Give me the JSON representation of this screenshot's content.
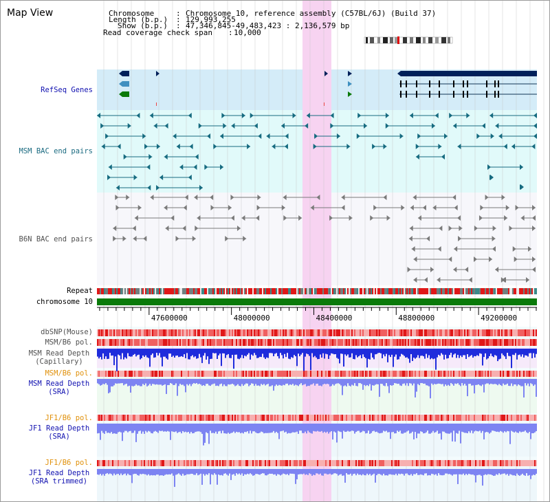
{
  "page": {
    "title": "Map View"
  },
  "header": {
    "chromosome_key": "Chromosome",
    "chromosome_value": "Chromosome 10, reference assembly (C57BL/6J) (Build 37)",
    "length_key": "Length (b.p.)",
    "length_value": "129,993,255",
    "show_key": "Show (b.p.)",
    "show_value": "47,346,845-49,483,423 : 2,136,579 bp",
    "span_key": "Read coverage check span",
    "span_value": "10,000"
  },
  "colors": {
    "highlight": "#f7d3f1",
    "refseq_bg": "#d4ecf8",
    "msm_bac_bg": "#e1fafa",
    "b6n_bac_bg": "#f7f7fb",
    "navy": "#00205a",
    "teal": "#166b80",
    "grey_feature": "#7a7a7a",
    "chromosome_green": "#0a7a0a",
    "depth_blue": "#1f2cdc",
    "depth_lavender": "#7d84f2",
    "pol_red": "#e83030"
  },
  "tracks": [
    {
      "name": "refseq-genes",
      "label": "RefSeq Genes",
      "color": "#1010b0"
    },
    {
      "name": "msm-bac-end-pairs",
      "label": "MSM BAC end pairs",
      "color": "#1a6a80"
    },
    {
      "name": "b6n-bac-end-pairs",
      "label": "B6N BAC end pairs",
      "color": "#505050"
    },
    {
      "name": "repeat",
      "label": "Repeat",
      "color": "#000000"
    },
    {
      "name": "chromosome",
      "label": "chromosome 10",
      "color": "#000000"
    },
    {
      "name": "dbsnp",
      "label": "dbSNP(Mouse)",
      "color": "#505050"
    },
    {
      "name": "msm-b6-pol-1",
      "label": "MSM/B6 pol.",
      "color": "#505050"
    },
    {
      "name": "msm-depth-capillary",
      "label": "MSM Read Depth\n(Capillary)",
      "color": "#505050"
    },
    {
      "name": "msm-b6-pol-2",
      "label": "MSM/B6 pol.",
      "color": "#e0900a"
    },
    {
      "name": "msm-depth-sra",
      "label": "MSM Read Depth\n(SRA)",
      "color": "#1010b0"
    },
    {
      "name": "jf1-b6-pol-1",
      "label": "JF1/B6 pol.",
      "color": "#e0900a"
    },
    {
      "name": "jf1-depth-sra",
      "label": "JF1 Read Depth\n(SRA)",
      "color": "#1010b0"
    },
    {
      "name": "jf1-b6-pol-2",
      "label": "JF1/B6 pol.",
      "color": "#e0900a"
    },
    {
      "name": "jf1-depth-sra-trimmed",
      "label": "JF1 Read Depth\n(SRA trimmed)",
      "color": "#1010b0"
    }
  ],
  "ruler": {
    "range_bp": [
      47346845,
      49483423
    ],
    "ticks": [
      {
        "position": 47600000,
        "label": "47600000"
      },
      {
        "position": 48000000,
        "label": "48000000"
      },
      {
        "position": 48400000,
        "label": "48400000"
      },
      {
        "position": 48800000,
        "label": "48800000"
      },
      {
        "position": 49200000,
        "label": "49200000"
      }
    ]
  }
}
